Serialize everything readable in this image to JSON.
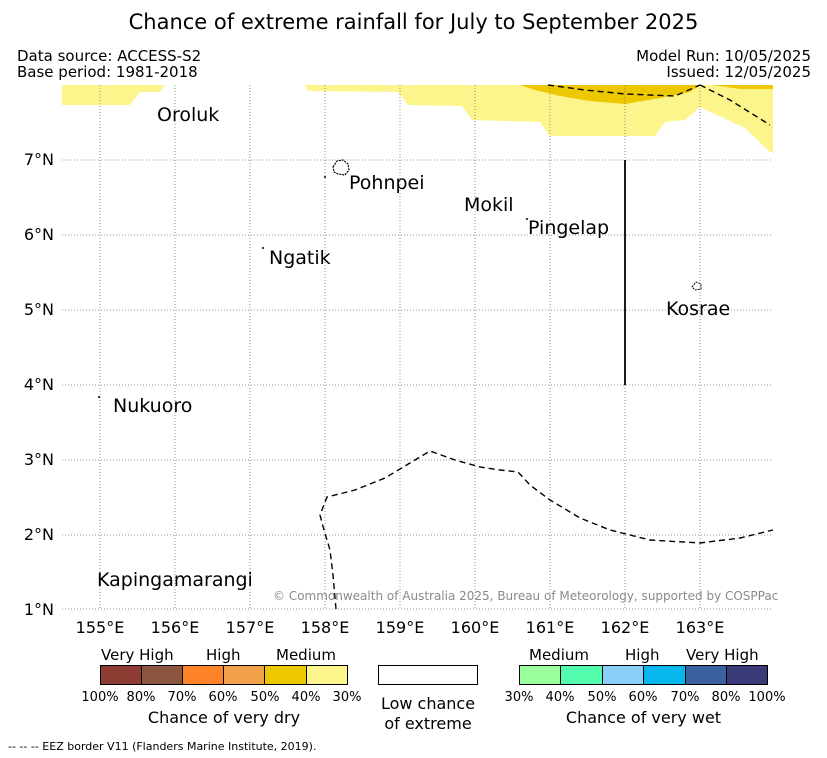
{
  "title": "Chance of extreme rainfall for July to September 2025",
  "header": {
    "data_source": "Data source: ACCESS-S2",
    "base_period": "Base period: 1981-2018",
    "model_run": "Model Run: 10/05/2025",
    "issued": "Issued: 12/05/2025"
  },
  "map": {
    "lat_labels": [
      "7°N",
      "6°N",
      "5°N",
      "4°N",
      "3°N",
      "2°N",
      "1°N"
    ],
    "lon_labels": [
      "155°E",
      "156°E",
      "157°E",
      "158°E",
      "159°E",
      "160°E",
      "161°E",
      "162°E",
      "163°E"
    ],
    "places": {
      "oroluk": "Oroluk",
      "pohnpei": "Pohnpei",
      "mokil": "Mokil",
      "pingelap": "Pingelap",
      "ngatik": "Ngatik",
      "kosrae": "Kosrae",
      "nukuoro": "Nukuoro",
      "kapingamarangi": "Kapingamarangi"
    },
    "copyright": "© Commonwealth of Australia 2025, Bureau of Meteorology, supported by COSPPac",
    "colors": {
      "dry_medium": "#fcf58c",
      "dry_high": "#edc700"
    }
  },
  "legend": {
    "dry": {
      "levels": [
        "Very High",
        "High",
        "Medium"
      ],
      "percents": [
        "100%",
        "80%",
        "70%",
        "60%",
        "50%",
        "40%",
        "30%"
      ],
      "colors": [
        "#8c3c33",
        "#8c5540",
        "#fe8327",
        "#f0a14a",
        "#edc700",
        "#fcf58c"
      ],
      "caption": "Chance of very dry"
    },
    "low": {
      "line1": "Low chance",
      "line2": "of extreme"
    },
    "wet": {
      "levels": [
        "Medium",
        "High",
        "Very High"
      ],
      "percents": [
        "30%",
        "40%",
        "50%",
        "60%",
        "70%",
        "80%",
        "100%"
      ],
      "colors": [
        "#9afe9a",
        "#52fcac",
        "#8acefa",
        "#06b7ee",
        "#3b629e",
        "#3b3b7a"
      ],
      "caption": "Chance of very wet"
    }
  },
  "footer": {
    "eez": "--  --  -- EEZ border V11 (Flanders Marine Institute, 2019)."
  }
}
